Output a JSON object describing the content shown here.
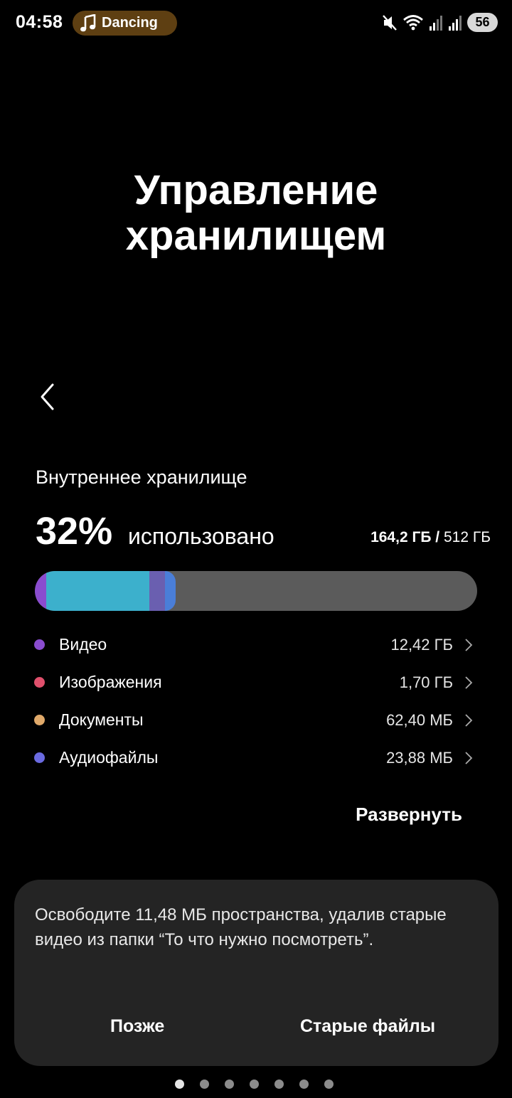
{
  "status_bar": {
    "time": "04:58",
    "media_title": "Dancing",
    "battery": "56"
  },
  "page": {
    "title": "Управление хранилищем"
  },
  "storage": {
    "section_label": "Внутреннее хранилище",
    "percent_used": "32%",
    "used_word": "использовано",
    "used_amount": "164,2 ГБ /",
    "total_amount": " 512 ГБ",
    "usage_fraction": 0.32,
    "categories": [
      {
        "name": "Видео",
        "size": "12,42 ГБ",
        "color": "#8a4ccf"
      },
      {
        "name": "Изображения",
        "size": "1,70 ГБ",
        "color": "#e0506c"
      },
      {
        "name": "Документы",
        "size": "62,40 МБ",
        "color": "#e0a96a"
      },
      {
        "name": "Аудиофайлы",
        "size": "23,88 МБ",
        "color": "#6a6ae0"
      }
    ],
    "expand_label": "Развернуть"
  },
  "suggestion": {
    "text": "Освободите 11,48 МБ пространства, удалив старые видео из папки “То что нужно посмотреть”.",
    "later_label": "Позже",
    "old_files_label": "Старые файлы"
  },
  "pager": {
    "count": 7,
    "active_index": 0
  }
}
